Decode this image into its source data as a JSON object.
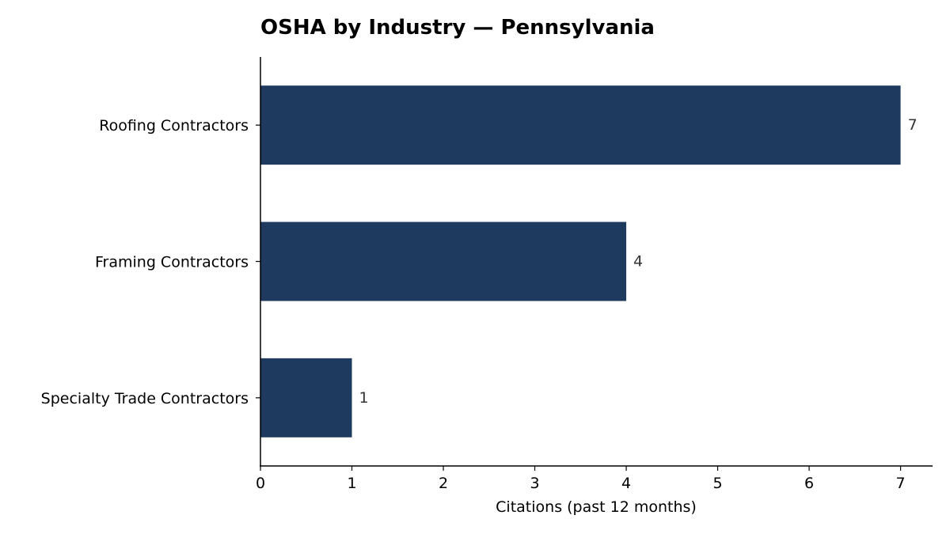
{
  "chart_data": {
    "type": "bar",
    "orientation": "horizontal",
    "title": "OSHA by Industry — Pennsylvania",
    "xlabel": "Citations (past 12 months)",
    "ylabel": "",
    "categories": [
      "Roofing Contractors",
      "Framing Contractors",
      "Specialty Trade Contractors"
    ],
    "values": [
      7,
      4,
      1
    ],
    "xlim": [
      0,
      7.35
    ],
    "xticks": [
      0,
      1,
      2,
      3,
      4,
      5,
      6,
      7
    ],
    "bar_color": "#1f3a5f",
    "grid": false
  }
}
